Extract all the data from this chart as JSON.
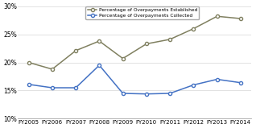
{
  "x_labels": [
    "FY2005",
    "FY2006",
    "FY2007",
    "FY2008",
    "FY2009",
    "FY2010",
    "FY2011",
    "FY2012",
    "FY2013",
    "FY2014"
  ],
  "established": [
    20.0,
    18.8,
    22.1,
    23.8,
    20.7,
    23.3,
    24.1,
    26.0,
    28.2,
    27.8
  ],
  "collected": [
    16.1,
    15.5,
    15.5,
    19.5,
    14.5,
    14.4,
    14.5,
    16.0,
    17.0,
    16.4
  ],
  "color_established": "#808060",
  "color_collected": "#4472c4",
  "legend_established": "Percentage of Overpayments Established",
  "legend_collected": "Percentage of Overpayments Collected",
  "ylim": [
    10,
    30
  ],
  "yticks": [
    10,
    15,
    20,
    25,
    30
  ],
  "background_color": "#ffffff"
}
